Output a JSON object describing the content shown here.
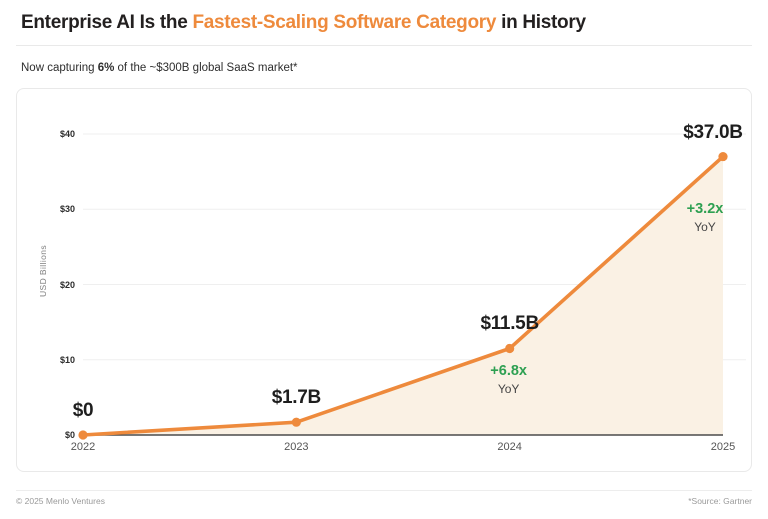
{
  "header": {
    "title_part1": "Enterprise AI Is the ",
    "title_highlight": "Fastest-Scaling Software Category",
    "title_part2": " in History",
    "subtitle_pre": "Now capturing ",
    "subtitle_bold": "6%",
    "subtitle_post": " of the ~$300B global SaaS market*"
  },
  "footer": {
    "copyright": "© 2025 Menlo Ventures",
    "source": "*Source: Gartner"
  },
  "chart_data": {
    "type": "area",
    "title": "",
    "x": [
      "2022",
      "2023",
      "2024",
      "2025"
    ],
    "values": [
      0,
      1.7,
      11.5,
      37.0
    ],
    "point_labels": [
      "$0",
      "$1.7B",
      "$11.5B",
      "$37.0B"
    ],
    "annotations": [
      {
        "x": "2024",
        "growth": "+6.8x",
        "caption": "YoY"
      },
      {
        "x": "2025",
        "growth": "+3.2x",
        "caption": "YoY"
      }
    ],
    "xlabel": "",
    "ylabel": "USD Billions",
    "ylim": [
      0,
      40
    ],
    "yticks": [
      0,
      10,
      20,
      30,
      40
    ],
    "ytick_labels": [
      "$0",
      "$10",
      "$20",
      "$30",
      "$40"
    ],
    "grid": "horizontal",
    "legend": "none",
    "colors": {
      "line": "#EE8A3C",
      "fill": "#FAF1E4",
      "growth_green": "#2EA052",
      "title_highlight": "#EE8A3C",
      "gridline": "#efefef",
      "axis": "#4b4b4b"
    }
  }
}
